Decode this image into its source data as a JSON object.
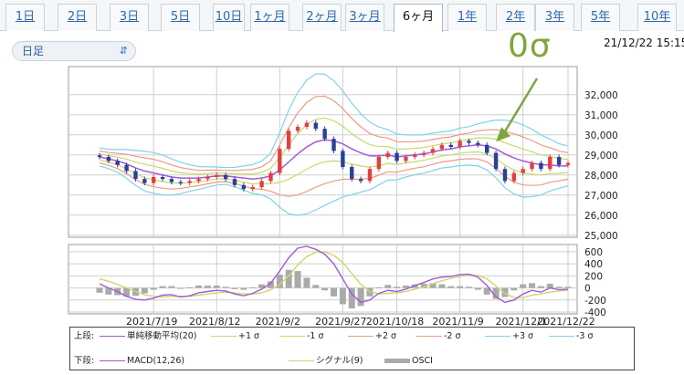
{
  "tabs": [
    {
      "label": "1日",
      "active": false
    },
    {
      "label": "2日",
      "active": false
    },
    {
      "label": "3日",
      "active": false
    },
    {
      "label": "5日",
      "active": false
    },
    {
      "label": "10日",
      "active": false
    },
    {
      "label": "1ヶ月",
      "active": false
    },
    {
      "label": "2ヶ月",
      "active": false
    },
    {
      "label": "3ヶ月",
      "active": false
    },
    {
      "label": "6ヶ月",
      "active": true
    },
    {
      "label": "1年",
      "active": false
    },
    {
      "label": "2年",
      "active": false
    },
    {
      "label": "3年",
      "active": false
    },
    {
      "label": "5年",
      "active": false
    },
    {
      "label": "10年",
      "active": false
    }
  ],
  "period_select": {
    "value": "日足",
    "icon": "up-down-chevron-icon"
  },
  "timestamp": "21/12/22 15:15",
  "annotation": {
    "text": "0σ",
    "color": "#7ea63f"
  },
  "colors": {
    "sma": "#a25ad6",
    "band1": "#c8d96a",
    "band2": "#ee9a86",
    "band3": "#7fd3e8",
    "macd": "#a25ad6",
    "signal": "#c8d96a",
    "osci": "#aaaaaa",
    "candle_up": "#e04040",
    "candle_down": "#2a3f9a",
    "grid": "#cfcfcf"
  },
  "chart_data": [
    {
      "type": "candlestick",
      "title": "",
      "ylim": [
        24900,
        33400
      ],
      "yticks": [
        "32,000",
        "31,000",
        "30,000",
        "29,000",
        "28,000",
        "27,000",
        "26,000",
        "25,000"
      ],
      "ytick_values": [
        32000,
        31000,
        30000,
        29000,
        28000,
        27000,
        26000,
        25000
      ],
      "grid": true,
      "x_dates": [
        "2021/7/19",
        "2021/8/12",
        "2021/9/2",
        "2021/9/27",
        "2021/10/18",
        "2021/11/9",
        "2021/12/1",
        "2021/12/22"
      ],
      "close_series": [
        28900,
        28700,
        28500,
        28200,
        27800,
        27600,
        27900,
        27800,
        27650,
        27600,
        27700,
        27800,
        27900,
        28000,
        27800,
        27500,
        27300,
        27400,
        27700,
        28100,
        29300,
        30200,
        30400,
        30600,
        30300,
        29800,
        29200,
        28400,
        27800,
        27700,
        28300,
        28900,
        29100,
        28700,
        28900,
        29000,
        29100,
        29300,
        29500,
        29400,
        29700,
        29600,
        29500,
        29100,
        28300,
        27700,
        28100,
        28300,
        28600,
        28300,
        28900,
        28500,
        28600
      ],
      "bands": {
        "sma20": [
          28900,
          28800,
          28700,
          28550,
          28350,
          28200,
          28100,
          28000,
          27900,
          27850,
          27850,
          27850,
          27900,
          27950,
          27950,
          27900,
          27850,
          27800,
          27850,
          27950,
          28250,
          28650,
          29050,
          29400,
          29650,
          29750,
          29700,
          29550,
          29300,
          29100,
          28950,
          28950,
          29000,
          28900,
          28950,
          29000,
          29050,
          29150,
          29250,
          29300,
          29400,
          29450,
          29500,
          29450,
          29300,
          29050,
          28850,
          28700,
          28600,
          28500,
          28500,
          28450,
          28450
        ],
        "sigma": [
          150,
          160,
          190,
          240,
          290,
          330,
          340,
          330,
          300,
          260,
          220,
          190,
          170,
          150,
          140,
          160,
          200,
          240,
          280,
          380,
          620,
          860,
          1020,
          1110,
          1130,
          1090,
          1000,
          880,
          760,
          650,
          560,
          480,
          420,
          380,
          350,
          330,
          320,
          310,
          300,
          300,
          310,
          320,
          350,
          400,
          480,
          560,
          600,
          600,
          560,
          500,
          430,
          370,
          330
        ]
      }
    },
    {
      "type": "macd",
      "ylim": [
        -430,
        720
      ],
      "yticks": [
        "600",
        "400",
        "200",
        "0",
        "-200",
        "-400"
      ],
      "ytick_values": [
        600,
        400,
        200,
        0,
        -200,
        -400
      ],
      "grid": true,
      "macd": [
        70,
        0,
        -60,
        -140,
        -190,
        -200,
        -170,
        -120,
        -110,
        -150,
        -130,
        -80,
        -60,
        -40,
        -50,
        -100,
        -130,
        -90,
        -20,
        80,
        280,
        500,
        660,
        690,
        640,
        560,
        400,
        150,
        -100,
        -240,
        -200,
        -90,
        -40,
        -60,
        -20,
        40,
        90,
        150,
        180,
        190,
        220,
        230,
        180,
        40,
        -150,
        -240,
        -200,
        -100,
        -40,
        -70,
        0,
        -30,
        -20
      ],
      "signal": [
        150,
        110,
        60,
        0,
        -60,
        -110,
        -140,
        -150,
        -140,
        -140,
        -140,
        -120,
        -100,
        -80,
        -70,
        -80,
        -100,
        -100,
        -80,
        -30,
        60,
        200,
        380,
        520,
        590,
        600,
        540,
        420,
        240,
        60,
        -60,
        -100,
        -90,
        -80,
        -60,
        -20,
        20,
        70,
        120,
        160,
        190,
        210,
        210,
        150,
        30,
        -90,
        -160,
        -160,
        -120,
        -100,
        -70,
        -50,
        -40
      ],
      "osci": [
        -80,
        -110,
        -120,
        -140,
        -130,
        -90,
        -30,
        30,
        30,
        -10,
        10,
        40,
        40,
        40,
        20,
        -20,
        -30,
        10,
        60,
        110,
        220,
        300,
        280,
        170,
        50,
        -40,
        -140,
        -270,
        -340,
        -300,
        -140,
        10,
        50,
        20,
        40,
        60,
        70,
        80,
        60,
        30,
        30,
        20,
        -30,
        -110,
        -180,
        -150,
        -40,
        60,
        80,
        30,
        70,
        20,
        20
      ]
    }
  ],
  "legend": {
    "row1_label": "上段:",
    "row1_items": [
      {
        "label": "単純移動平均(20)",
        "color_key": "sma"
      },
      {
        "label": "+1 σ",
        "color_key": "band1"
      },
      {
        "label": "-1 σ",
        "color_key": "band1"
      },
      {
        "label": "+2 σ",
        "color_key": "band2"
      },
      {
        "label": "-2 σ",
        "color_key": "band2"
      },
      {
        "label": "+3 σ",
        "color_key": "band3"
      },
      {
        "label": "-3 σ",
        "color_key": "band3"
      }
    ],
    "row2_label": "下段:",
    "row2_items": [
      {
        "label": "MACD(12,26)",
        "color_key": "macd"
      },
      {
        "label": "シグナル(9)",
        "color_key": "signal"
      },
      {
        "label": "OSCI",
        "color_key": "osci"
      }
    ]
  }
}
